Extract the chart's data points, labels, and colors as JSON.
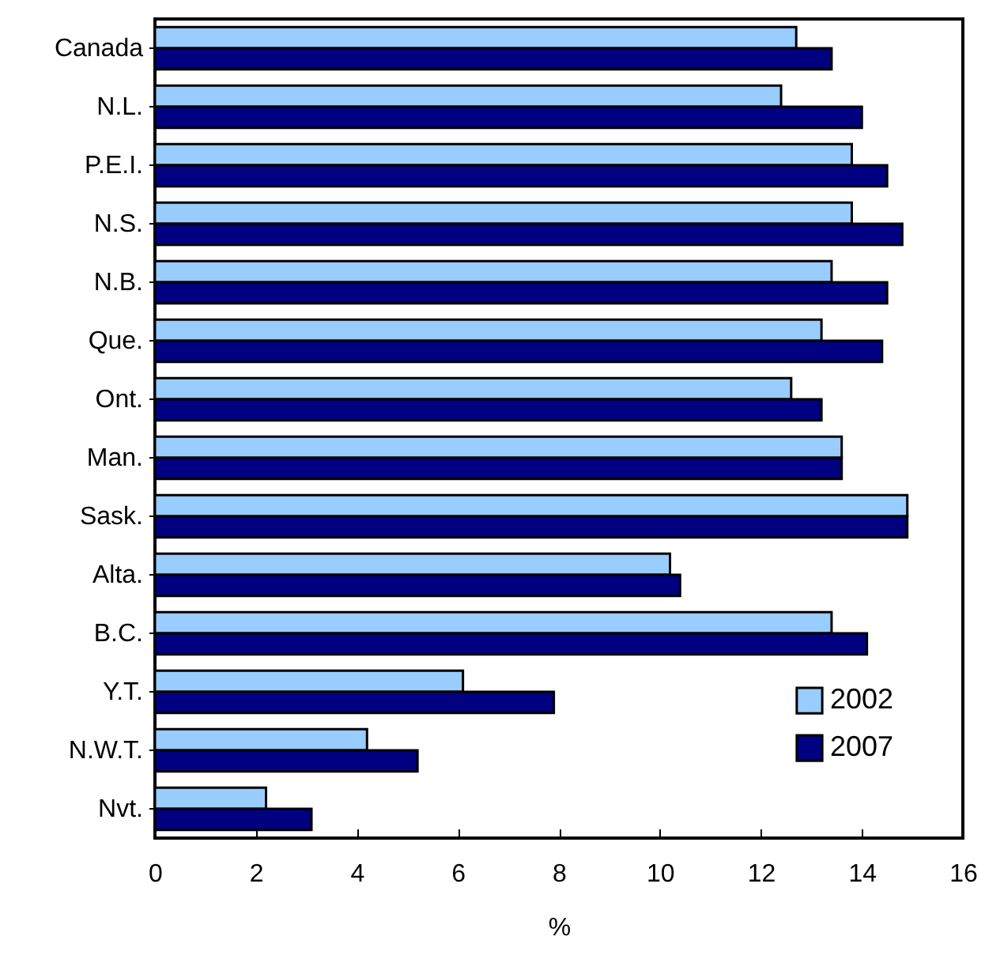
{
  "chart_data": {
    "type": "bar",
    "orientation": "horizontal",
    "xlabel": "%",
    "categories": [
      "Canada",
      "N.L.",
      "P.E.I.",
      "N.S.",
      "N.B.",
      "Que.",
      "Ont.",
      "Man.",
      "Sask.",
      "Alta.",
      "B.C.",
      "Y.T.",
      "N.W.T.",
      "Nvt."
    ],
    "series": [
      {
        "name": "2002",
        "color": "#99ccff",
        "values": [
          12.7,
          12.4,
          13.8,
          13.8,
          13.4,
          13.2,
          12.6,
          13.6,
          14.9,
          10.2,
          13.4,
          6.1,
          4.2,
          2.2
        ]
      },
      {
        "name": "2007",
        "color": "#000080",
        "values": [
          13.4,
          14.0,
          14.5,
          14.8,
          14.5,
          14.4,
          13.2,
          13.6,
          14.9,
          10.4,
          14.1,
          7.9,
          5.2,
          3.1
        ]
      }
    ],
    "xlim": [
      0,
      16
    ],
    "xticks": [
      0,
      2,
      4,
      6,
      8,
      10,
      12,
      14,
      16
    ],
    "grid": false,
    "legend": "bottom right"
  }
}
